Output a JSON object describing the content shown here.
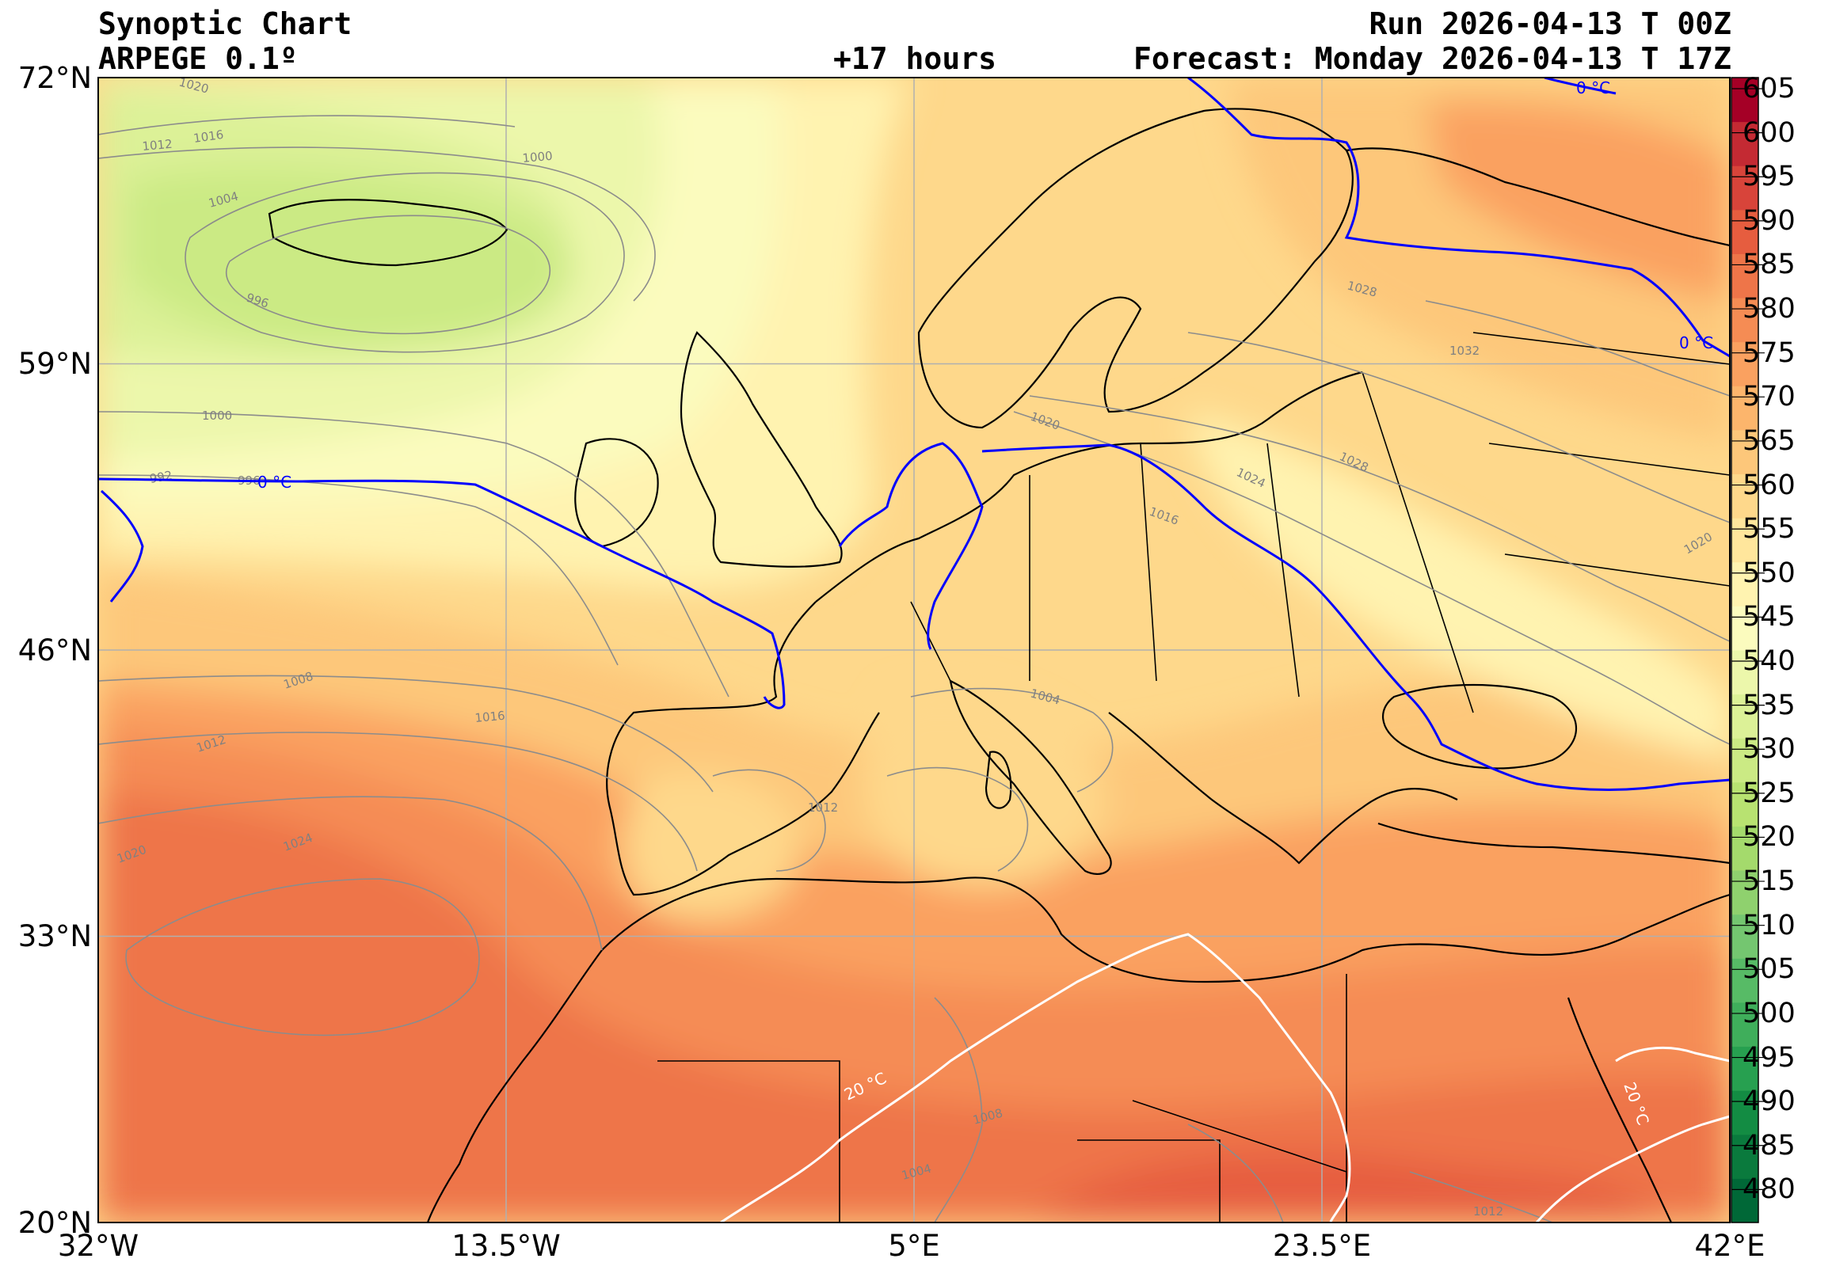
{
  "header": {
    "title": "Synoptic Chart",
    "model": "ARPEGE 0.1º",
    "lead_time": "+17 hours",
    "run": "Run 2026-04-13 T 00Z",
    "forecast": "Forecast: Monday 2026-04-13 T 17Z"
  },
  "map": {
    "extent": {
      "lon_min": -32,
      "lon_max": 42,
      "lat_min": 20,
      "lat_max": 72
    },
    "lon_ticks": [
      {
        "value": -32,
        "label": "32°W"
      },
      {
        "value": -13.5,
        "label": "13.5°W"
      },
      {
        "value": 5,
        "label": "5°E"
      },
      {
        "value": 23.5,
        "label": "23.5°E"
      },
      {
        "value": 42,
        "label": "42°E"
      }
    ],
    "lat_ticks": [
      {
        "value": 72,
        "label": "72°N"
      },
      {
        "value": 59,
        "label": "59°N"
      },
      {
        "value": 46,
        "label": "46°N"
      },
      {
        "value": 33,
        "label": "33°N"
      },
      {
        "value": 20,
        "label": "20°N"
      }
    ],
    "isobar_labels": [
      "1020",
      "1016",
      "1012",
      "1000",
      "1004",
      "996",
      "1000",
      "992",
      "996",
      "1008",
      "1012",
      "1016",
      "1020",
      "1024",
      "1020",
      "1016",
      "1024",
      "1028",
      "1032",
      "1028",
      "1020",
      "1012",
      "1004",
      "1008",
      "1004",
      "1012"
    ],
    "isotherm_labels": {
      "zero": "0 °C",
      "twenty": "20 °C"
    },
    "colors": {
      "coast": "#000000",
      "isotherm_0": "#0000ff",
      "isotherm_20": "#ffffff",
      "isobar": "#8c8c8c",
      "grid": "#b0b0b0"
    }
  },
  "colorbar": {
    "unit_scale": "gpdam",
    "levels": [
      480,
      485,
      490,
      495,
      500,
      505,
      510,
      515,
      520,
      525,
      530,
      535,
      540,
      545,
      550,
      555,
      560,
      565,
      570,
      575,
      580,
      585,
      590,
      595,
      600,
      605
    ],
    "labels": [
      "480",
      "485",
      "490",
      "495",
      "500",
      "505",
      "510",
      "515",
      "520",
      "525",
      "530",
      "535",
      "540",
      "545",
      "550",
      "555",
      "560",
      "565",
      "570",
      "575",
      "580",
      "585",
      "590",
      "595",
      "600",
      "605"
    ],
    "colors": [
      "#006837",
      "#0a7a3d",
      "#138c43",
      "#27a050",
      "#3fae5b",
      "#57bb66",
      "#74c670",
      "#8fd16e",
      "#a4da6c",
      "#b8e271",
      "#cbea84",
      "#dcf197",
      "#ecf7ab",
      "#fbfbbe",
      "#fff3b0",
      "#ffe69c",
      "#fed88b",
      "#fdc77a",
      "#fcb56c",
      "#faa160",
      "#f58c54",
      "#ee7549",
      "#e65d3f",
      "#d8443a",
      "#c42a33",
      "#a50026"
    ]
  }
}
